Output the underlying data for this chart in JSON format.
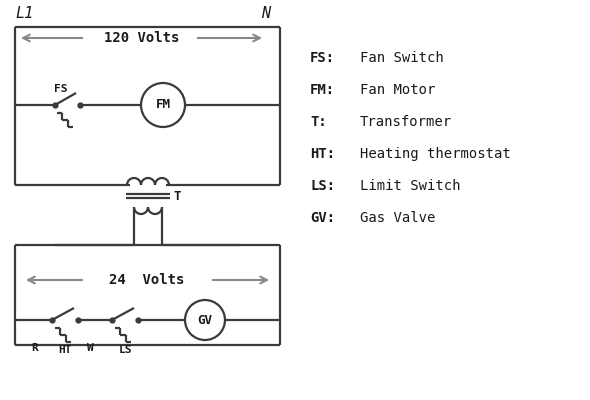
{
  "bg_color": "#ffffff",
  "line_color": "#3a3a3a",
  "arrow_color": "#888888",
  "text_color": "#1a1a1a",
  "font_family": "DejaVu Sans Mono",
  "legend": [
    [
      "FS:",
      "Fan Switch"
    ],
    [
      "FM:",
      "Fan Motor"
    ],
    [
      "T:",
      "Transformer"
    ],
    [
      "HT:",
      "Heating thermostat"
    ],
    [
      "LS:",
      "Limit Switch"
    ],
    [
      "GV:",
      "Gas Valve"
    ]
  ],
  "L1_label": "L1",
  "N_label": "N",
  "v120_label": "120 Volts",
  "v24_label": "24  Volts"
}
